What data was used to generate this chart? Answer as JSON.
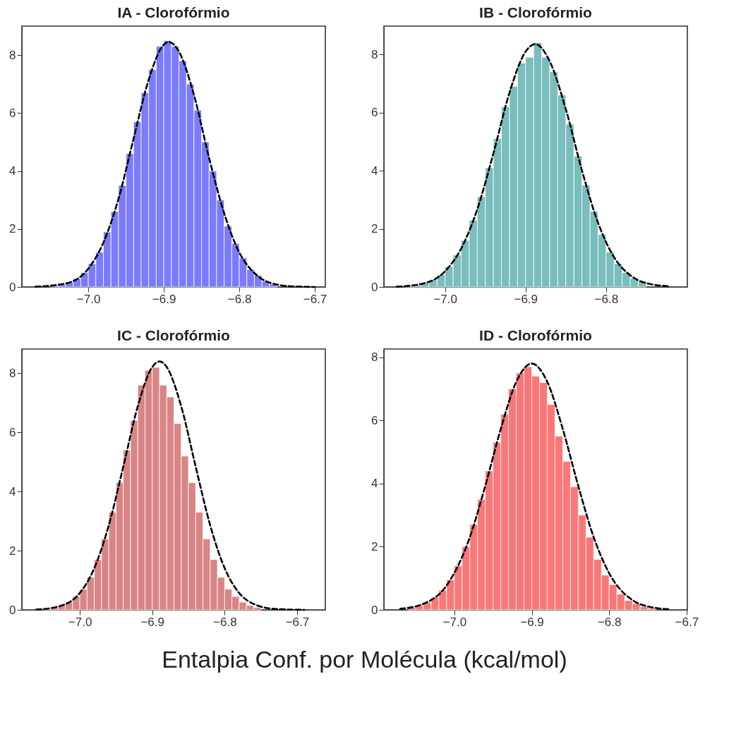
{
  "chart_data": [
    {
      "type": "histogram",
      "title": "IA - Clorofórmio",
      "xlim": [
        -7.088,
        -6.686
      ],
      "ylim": [
        0,
        9.0
      ],
      "xticks": [
        {
          "value": -7.0,
          "label": "−7.0"
        },
        {
          "value": -6.9,
          "label": "−6.9"
        },
        {
          "value": -6.8,
          "label": "−6.8"
        },
        {
          "value": -6.7,
          "label": "−6.7"
        }
      ],
      "yticks": [
        0,
        2,
        4,
        6,
        8
      ],
      "bins": [
        -7.05,
        -7.04,
        -7.03,
        -7.02,
        -7.01,
        -7.0,
        -6.99,
        -6.98,
        -6.97,
        -6.96,
        -6.95,
        -6.94,
        -6.93,
        -6.92,
        -6.91,
        -6.9,
        -6.89,
        -6.88,
        -6.87,
        -6.86,
        -6.85,
        -6.84,
        -6.83,
        -6.82,
        -6.81,
        -6.8,
        -6.79,
        -6.78,
        -6.77,
        -6.76,
        -6.75
      ],
      "series": [
        {
          "color": "#7b7bff",
          "values": [
            0.05,
            0.09,
            0.16,
            0.29,
            0.49,
            0.8,
            1.2,
            1.9,
            2.6,
            3.5,
            4.6,
            5.7,
            6.7,
            7.5,
            8.3,
            8.5,
            8.3,
            7.8,
            7.0,
            6.1,
            5.0,
            4.0,
            3.0,
            2.1,
            1.5,
            1.0,
            0.6,
            0.4,
            0.2,
            0.1
          ]
        },
        {
          "type": "line",
          "color": "#000000",
          "line_style": "dashed",
          "x": [
            -7.07,
            -7.03,
            -7.0,
            -6.98,
            -6.96,
            -6.94,
            -6.92,
            -6.9,
            -6.893,
            -6.88,
            -6.86,
            -6.84,
            -6.82,
            -6.8,
            -6.78,
            -6.76,
            -6.73,
            -6.7
          ],
          "values": [
            0.01,
            0.12,
            0.63,
            1.53,
            3.04,
            5.12,
            7.15,
            8.36,
            8.45,
            8.12,
            6.62,
            4.45,
            2.54,
            1.19,
            0.48,
            0.15,
            0.02,
            0.0
          ]
        }
      ]
    },
    {
      "type": "histogram",
      "title": "IB - Clorofórmio",
      "xlim": [
        -7.076,
        -6.699
      ],
      "ylim": [
        0,
        8.97
      ],
      "xticks": [
        {
          "value": -7.0,
          "label": "−7.0"
        },
        {
          "value": -6.9,
          "label": "−6.9"
        },
        {
          "value": -6.8,
          "label": "−6.8"
        }
      ],
      "yticks": [
        0,
        2,
        4,
        6,
        8
      ],
      "bins": [
        -7.05,
        -7.04,
        -7.03,
        -7.02,
        -7.01,
        -7.0,
        -6.99,
        -6.98,
        -6.97,
        -6.96,
        -6.95,
        -6.94,
        -6.93,
        -6.92,
        -6.91,
        -6.9,
        -6.89,
        -6.88,
        -6.87,
        -6.86,
        -6.85,
        -6.84,
        -6.83,
        -6.82,
        -6.81,
        -6.8,
        -6.79,
        -6.78,
        -6.77,
        -6.76,
        -6.75
      ],
      "series": [
        {
          "color": "#79bdbc",
          "values": [
            0.04,
            0.07,
            0.14,
            0.24,
            0.42,
            0.7,
            1.1,
            1.6,
            2.3,
            3.1,
            4.1,
            5.1,
            6.2,
            6.9,
            7.7,
            7.9,
            8.4,
            7.9,
            7.4,
            6.6,
            5.6,
            4.5,
            3.5,
            2.6,
            1.8,
            1.2,
            0.8,
            0.5,
            0.3,
            0.2
          ]
        },
        {
          "type": "line",
          "color": "#000000",
          "line_style": "dashed",
          "x": [
            -7.06,
            -7.03,
            -7.0,
            -6.98,
            -6.96,
            -6.94,
            -6.92,
            -6.9,
            -6.888,
            -6.87,
            -6.85,
            -6.83,
            -6.81,
            -6.79,
            -6.77,
            -6.75,
            -6.72
          ],
          "values": [
            0.01,
            0.1,
            0.54,
            1.32,
            2.67,
            4.59,
            6.68,
            8.09,
            8.35,
            7.76,
            6.11,
            4.01,
            2.21,
            1.02,
            0.4,
            0.13,
            0.02
          ]
        }
      ]
    },
    {
      "type": "histogram",
      "title": "IC - Clorofórmio",
      "xlabel": "Entalpia Conf. por Molécula (kcal/mol)",
      "xlim": [
        -7.08,
        -6.661
      ],
      "ylim": [
        0,
        8.82
      ],
      "xticks": [
        {
          "value": -7.0,
          "label": "−7.0"
        },
        {
          "value": -6.9,
          "label": "−6.9"
        },
        {
          "value": -6.8,
          "label": "−6.8"
        },
        {
          "value": -6.7,
          "label": "−6.7"
        }
      ],
      "yticks": [
        0,
        2,
        4,
        6,
        8
      ],
      "bins": [
        -7.05,
        -7.04,
        -7.03,
        -7.02,
        -7.01,
        -7.0,
        -6.99,
        -6.98,
        -6.97,
        -6.96,
        -6.95,
        -6.94,
        -6.93,
        -6.92,
        -6.91,
        -6.9,
        -6.89,
        -6.88,
        -6.87,
        -6.86,
        -6.85,
        -6.84,
        -6.83,
        -6.82,
        -6.81,
        -6.8,
        -6.79,
        -6.78,
        -6.77,
        -6.76,
        -6.75
      ],
      "series": [
        {
          "color": "#d98585",
          "values": [
            0.04,
            0.08,
            0.15,
            0.26,
            0.45,
            0.7,
            1.1,
            1.7,
            2.4,
            3.3,
            4.3,
            5.4,
            6.4,
            7.6,
            8.1,
            8.2,
            7.6,
            7.2,
            6.3,
            5.2,
            4.3,
            3.3,
            2.4,
            1.7,
            1.1,
            0.7,
            0.45,
            0.26,
            0.15,
            0.08
          ]
        },
        {
          "type": "line",
          "color": "#000000",
          "line_style": "dashed",
          "x": [
            -7.06,
            -7.03,
            -7.0,
            -6.98,
            -6.96,
            -6.94,
            -6.92,
            -6.9,
            -6.89,
            -6.88,
            -6.86,
            -6.84,
            -6.82,
            -6.8,
            -6.78,
            -6.76,
            -6.73,
            -6.69
          ],
          "values": [
            0.01,
            0.11,
            0.57,
            1.41,
            2.86,
            4.84,
            6.88,
            8.21,
            8.4,
            8.21,
            6.88,
            4.84,
            2.86,
            1.41,
            0.57,
            0.2,
            0.03,
            0.0
          ]
        }
      ]
    },
    {
      "type": "histogram",
      "title": "ID - Clorofórmio",
      "xlim": [
        -7.091,
        -6.699
      ],
      "ylim": [
        0,
        8.26
      ],
      "xticks": [
        {
          "value": -7.0,
          "label": "−7.0"
        },
        {
          "value": -6.9,
          "label": "−6.9"
        },
        {
          "value": -6.8,
          "label": "−6.8"
        },
        {
          "value": -6.7,
          "label": "−6.7"
        }
      ],
      "yticks": [
        0,
        2,
        4,
        6,
        8
      ],
      "bins": [
        -7.06,
        -7.05,
        -7.04,
        -7.03,
        -7.02,
        -7.01,
        -7.0,
        -6.99,
        -6.98,
        -6.97,
        -6.96,
        -6.95,
        -6.94,
        -6.93,
        -6.92,
        -6.91,
        -6.9,
        -6.89,
        -6.88,
        -6.87,
        -6.86,
        -6.85,
        -6.84,
        -6.83,
        -6.82,
        -6.81,
        -6.8,
        -6.79,
        -6.78,
        -6.77,
        -6.76,
        -6.75,
        -6.74
      ],
      "series": [
        {
          "color": "#fa7777",
          "values": [
            0.08,
            0.14,
            0.24,
            0.4,
            0.62,
            0.95,
            1.4,
            2.0,
            2.7,
            3.5,
            4.4,
            5.3,
            6.2,
            7.0,
            7.5,
            7.7,
            7.4,
            7.2,
            6.5,
            5.5,
            4.7,
            3.9,
            3.0,
            2.3,
            1.6,
            1.1,
            0.8,
            0.5,
            0.3,
            0.2,
            0.1,
            0.05
          ]
        },
        {
          "type": "line",
          "color": "#000000",
          "line_style": "dashed",
          "x": [
            -7.07,
            -7.04,
            -7.01,
            -6.98,
            -6.96,
            -6.94,
            -6.92,
            -6.9,
            -6.88,
            -6.86,
            -6.84,
            -6.82,
            -6.8,
            -6.77,
            -6.74,
            -6.72
          ],
          "values": [
            0.03,
            0.19,
            0.77,
            2.3,
            3.93,
            5.73,
            7.22,
            7.8,
            7.22,
            5.73,
            3.93,
            2.3,
            1.16,
            0.31,
            0.06,
            0.02
          ]
        }
      ]
    }
  ]
}
